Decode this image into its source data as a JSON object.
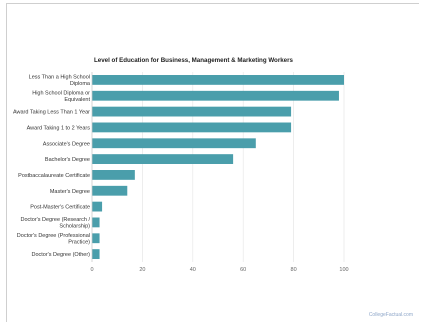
{
  "chart_data": {
    "type": "bar",
    "orientation": "horizontal",
    "title": "Level of Education for Business, Management & Marketing Workers",
    "categories": [
      "Less Than a High School Diploma",
      "High School Diploma or Equivalent",
      "Award Taking Less Than 1 Year",
      "Award Taking 1 to 2 Years",
      "Associate's Degree",
      "Bachelor's Degree",
      "Postbaccalaureate Certificate",
      "Master's Degree",
      "Post-Master's Certificate",
      "Doctor's Degree (Research / Scholarship)",
      "Doctor's Degree (Professional Practice)",
      "Doctor's Degree (Other)"
    ],
    "category_lines": [
      [
        "Less Than a High School",
        "Diploma"
      ],
      [
        "High School Diploma or",
        "Equivalent"
      ],
      [
        "Award Taking Less Than 1 Year"
      ],
      [
        "Award Taking 1 to 2 Years"
      ],
      [
        "Associate's Degree"
      ],
      [
        "Bachelor's Degree"
      ],
      [
        "Postbaccalaureate Certificate"
      ],
      [
        "Master's Degree"
      ],
      [
        "Post-Master's Certificate"
      ],
      [
        "Doctor's Degree (Research /",
        "Scholarship)"
      ],
      [
        "Doctor's Degree (Professional",
        "Practice)"
      ],
      [
        "Doctor's Degree (Other)"
      ]
    ],
    "values": [
      100,
      98,
      79,
      79,
      65,
      56,
      17,
      14,
      4,
      3,
      3,
      3
    ],
    "xlim": [
      0,
      100
    ],
    "x_ticks": [
      0,
      20,
      40,
      60,
      80,
      100
    ],
    "bar_color": "#4a9eab",
    "grid": true
  },
  "footer": "CollegeFactual.com"
}
